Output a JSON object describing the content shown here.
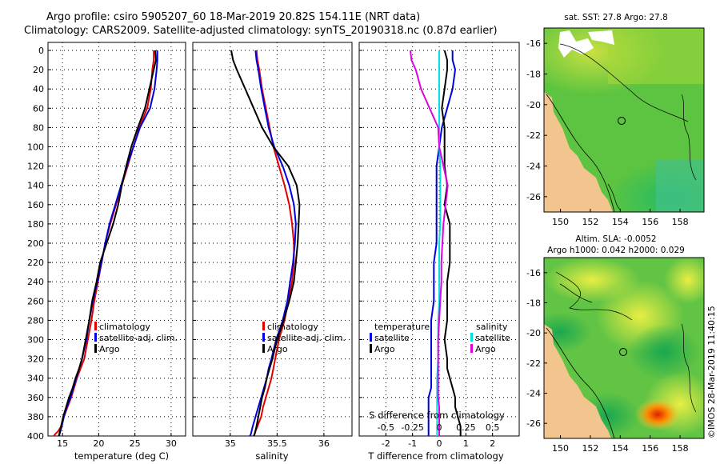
{
  "header": {
    "title_line1": "Argo profile: csiro 5905207_60 18-Mar-2019 20.82S 154.11E (NRT data)",
    "title_line2": "Climatology: CARS2009. Satellite-adjusted climatology: synTS_20190318.nc (0.87d earlier)"
  },
  "depth_axis": {
    "ticks": [
      "0",
      "20",
      "40",
      "60",
      "80",
      "100",
      "120",
      "140",
      "160",
      "180",
      "200",
      "220",
      "240",
      "260",
      "280",
      "300",
      "320",
      "340",
      "360",
      "380",
      "400"
    ],
    "range": [
      0,
      400
    ]
  },
  "colors": {
    "climatology": "#e00000",
    "satellite": "#0000dd",
    "argo": "#000000",
    "sal_satellite": "#00e0e0",
    "sal_argo": "#e000e0"
  },
  "panels": {
    "temperature": {
      "xlabel": "temperature (deg C)",
      "xticks": [
        "15",
        "20",
        "25",
        "30"
      ],
      "legend": [
        "climatology",
        "satellite-adj. clim.",
        "Argo"
      ]
    },
    "salinity": {
      "xlabel": "salinity",
      "xticks": [
        "35",
        "35.5",
        "36"
      ],
      "legend": [
        "climatology",
        "satellite-adj. clim.",
        "Argo"
      ]
    },
    "difference": {
      "xlabel": "T difference from climatology",
      "xticks": [
        "-2",
        "-1",
        "0",
        "1",
        "2"
      ],
      "top_label": "S difference from climatology",
      "top_ticks": [
        "-0.5",
        "-0.25",
        "0",
        "0.25",
        "0.5"
      ],
      "legend_temp_title": "temperature",
      "legend_sal_title": "salinity",
      "legend_items": [
        "satellite",
        "Argo",
        "satellite",
        "Argo"
      ]
    }
  },
  "maps": {
    "sst": {
      "title": "sat. SST: 27.8 Argo: 27.8",
      "xticks": [
        "150",
        "152",
        "154",
        "156",
        "158"
      ],
      "yticks": [
        "-16",
        "-18",
        "-20",
        "-22",
        "-24",
        "-26"
      ]
    },
    "sla": {
      "title_line1": "Altim. SLA: -0.0052",
      "title_line2": "Argo h1000: 0.042 h2000: 0.029",
      "xticks": [
        "150",
        "152",
        "154",
        "156",
        "158"
      ],
      "yticks": [
        "-16",
        "-18",
        "-20",
        "-22",
        "-24",
        "-26"
      ]
    }
  },
  "footer": {
    "stamp": "©IMOS 28-Mar-2019 11:40:15"
  },
  "chart_data": [
    {
      "type": "line",
      "title": "temperature",
      "xlabel": "temperature (deg C)",
      "ylabel": "depth",
      "xlim": [
        13,
        32
      ],
      "ylim": [
        400,
        0
      ],
      "series": [
        {
          "name": "climatology",
          "color": "#e00000",
          "x": [
            27.6,
            27.6,
            27.4,
            27.2,
            26.7,
            25.6,
            24.8,
            24.0,
            23.2,
            22.4,
            21.6,
            20.9,
            20.4,
            19.9,
            19.4,
            19.0,
            18.5,
            18.0,
            17.5,
            17.0,
            16.6,
            16.2,
            15.7,
            15.2,
            14.8,
            14.4,
            14.0,
            13.8
          ],
          "y": [
            0,
            10,
            20,
            40,
            60,
            80,
            100,
            120,
            140,
            160,
            180,
            200,
            220,
            240,
            260,
            280,
            300,
            320,
            330,
            340,
            350,
            360,
            370,
            380,
            390,
            395,
            398,
            400
          ]
        },
        {
          "name": "satellite-adj. clim.",
          "color": "#0000dd",
          "x": [
            28.1,
            28.1,
            28.0,
            27.7,
            27.1,
            25.7,
            24.8,
            23.9,
            23.1,
            22.3,
            21.5,
            20.9,
            20.4,
            19.8,
            19.2,
            18.7,
            18.3,
            17.7,
            17.3,
            16.9,
            16.5,
            16.1,
            15.6,
            15.2,
            14.9,
            14.6,
            14.5
          ],
          "y": [
            0,
            10,
            20,
            40,
            60,
            80,
            100,
            120,
            140,
            160,
            180,
            200,
            220,
            240,
            260,
            280,
            300,
            320,
            330,
            340,
            350,
            360,
            370,
            380,
            390,
            398,
            400
          ]
        },
        {
          "name": "Argo",
          "color": "#000000",
          "x": [
            27.8,
            27.9,
            27.6,
            27.0,
            26.4,
            25.4,
            24.5,
            23.8,
            23.2,
            22.7,
            22.0,
            21.1,
            20.2,
            19.7,
            19.1,
            18.7,
            18.2,
            17.7,
            17.3,
            16.8,
            16.4,
            15.9,
            15.5,
            15.1,
            14.8,
            14.5
          ],
          "y": [
            0,
            10,
            20,
            40,
            60,
            80,
            100,
            120,
            140,
            160,
            180,
            200,
            220,
            240,
            260,
            280,
            300,
            320,
            330,
            340,
            350,
            360,
            370,
            380,
            390,
            400
          ]
        }
      ]
    },
    {
      "type": "line",
      "title": "salinity",
      "xlabel": "salinity",
      "ylabel": "depth",
      "xlim": [
        34.6,
        36.3
      ],
      "ylim": [
        400,
        0
      ],
      "series": [
        {
          "name": "climatology",
          "color": "#e00000",
          "x": [
            35.28,
            35.29,
            35.31,
            35.34,
            35.38,
            35.42,
            35.46,
            35.52,
            35.58,
            35.63,
            35.66,
            35.68,
            35.68,
            35.66,
            35.62,
            35.58,
            35.52,
            35.48,
            35.46,
            35.44,
            35.41,
            35.38,
            35.35,
            35.33,
            35.31,
            35.29,
            35.27,
            35.26,
            35.25
          ],
          "y": [
            0,
            10,
            20,
            40,
            60,
            80,
            100,
            120,
            140,
            160,
            180,
            200,
            220,
            240,
            260,
            280,
            300,
            320,
            330,
            340,
            350,
            360,
            370,
            380,
            385,
            390,
            395,
            398,
            400
          ]
        },
        {
          "name": "satellite-adj. clim.",
          "color": "#0000dd",
          "x": [
            35.27,
            35.28,
            35.3,
            35.33,
            35.37,
            35.41,
            35.47,
            35.56,
            35.63,
            35.68,
            35.7,
            35.69,
            35.67,
            35.64,
            35.61,
            35.56,
            35.49,
            35.44,
            35.41,
            35.39,
            35.36,
            35.33,
            35.3,
            35.27,
            35.24,
            35.22,
            35.21
          ],
          "y": [
            0,
            10,
            20,
            40,
            60,
            80,
            100,
            120,
            140,
            160,
            180,
            200,
            220,
            240,
            260,
            280,
            300,
            320,
            330,
            340,
            350,
            360,
            370,
            380,
            390,
            398,
            400
          ]
        },
        {
          "name": "Argo",
          "color": "#000000",
          "x": [
            35.01,
            35.03,
            35.07,
            35.16,
            35.25,
            35.34,
            35.46,
            35.62,
            35.71,
            35.74,
            35.73,
            35.72,
            35.7,
            35.68,
            35.63,
            35.57,
            35.5,
            35.45,
            35.42,
            35.39,
            35.37,
            35.34,
            35.32,
            35.3,
            35.28,
            35.26,
            35.25
          ],
          "y": [
            0,
            10,
            20,
            40,
            60,
            80,
            100,
            120,
            140,
            160,
            180,
            200,
            220,
            240,
            260,
            280,
            300,
            320,
            330,
            340,
            350,
            360,
            370,
            380,
            390,
            398,
            400
          ]
        }
      ]
    },
    {
      "type": "line",
      "title": "difference from climatology",
      "xlabel": "T difference from climatology",
      "x2label": "S difference from climatology",
      "ylabel": "depth",
      "xlim": [
        -3,
        3
      ],
      "x2lim": [
        -0.75,
        0.75
      ],
      "ylim": [
        400,
        0
      ],
      "series": [
        {
          "name": "temperature satellite",
          "color": "#0000dd",
          "axis": "T",
          "x": [
            0.5,
            0.5,
            0.6,
            0.5,
            0.3,
            0.1,
            0.0,
            -0.1,
            -0.1,
            -0.1,
            -0.1,
            -0.1,
            -0.2,
            -0.2,
            -0.2,
            -0.3,
            -0.3,
            -0.3,
            -0.3,
            -0.3,
            -0.3,
            -0.4,
            -0.4,
            -0.4,
            -0.4,
            -0.4
          ],
          "y": [
            0,
            10,
            20,
            40,
            60,
            80,
            100,
            120,
            140,
            160,
            180,
            200,
            220,
            240,
            260,
            280,
            300,
            320,
            330,
            340,
            350,
            360,
            370,
            380,
            390,
            400
          ]
        },
        {
          "name": "temperature Argo",
          "color": "#000000",
          "axis": "T",
          "x": [
            0.2,
            0.3,
            0.3,
            0.2,
            0.1,
            0.2,
            0.2,
            0.2,
            0.3,
            0.2,
            0.4,
            0.4,
            0.4,
            0.3,
            0.3,
            0.3,
            0.2,
            0.3,
            0.3,
            0.4,
            0.5,
            0.6,
            0.6,
            0.7,
            0.8,
            0.8
          ],
          "y": [
            0,
            10,
            20,
            40,
            60,
            80,
            100,
            120,
            140,
            160,
            180,
            200,
            220,
            240,
            260,
            280,
            300,
            320,
            330,
            340,
            350,
            360,
            370,
            380,
            390,
            400
          ]
        },
        {
          "name": "salinity satellite",
          "color": "#00e0e0",
          "axis": "S",
          "x": [
            0.0,
            0.0,
            0.0,
            0.0,
            0.0,
            0.0,
            0.0,
            0.01,
            0.01,
            0.01,
            0.01,
            0.0,
            0.0,
            0.0,
            0.0,
            -0.01,
            -0.01,
            -0.01,
            -0.02,
            -0.02,
            -0.02,
            -0.02,
            -0.02,
            -0.02,
            -0.02
          ],
          "y": [
            0,
            10,
            20,
            40,
            60,
            80,
            100,
            120,
            140,
            160,
            180,
            200,
            220,
            240,
            260,
            280,
            300,
            320,
            340,
            350,
            360,
            370,
            380,
            390,
            400
          ]
        },
        {
          "name": "salinity Argo",
          "color": "#e000e0",
          "axis": "S",
          "x": [
            -0.27,
            -0.26,
            -0.22,
            -0.17,
            -0.09,
            -0.01,
            0.0,
            0.04,
            0.08,
            0.06,
            0.04,
            0.03,
            0.02,
            0.02,
            0.01,
            0.0,
            -0.01,
            -0.01,
            -0.01,
            -0.01,
            -0.01,
            0.0,
            0.0,
            0.0,
            0.0
          ],
          "y": [
            0,
            10,
            20,
            40,
            60,
            80,
            100,
            120,
            140,
            160,
            180,
            200,
            220,
            240,
            260,
            280,
            300,
            320,
            340,
            350,
            360,
            370,
            380,
            390,
            400
          ]
        }
      ]
    }
  ]
}
